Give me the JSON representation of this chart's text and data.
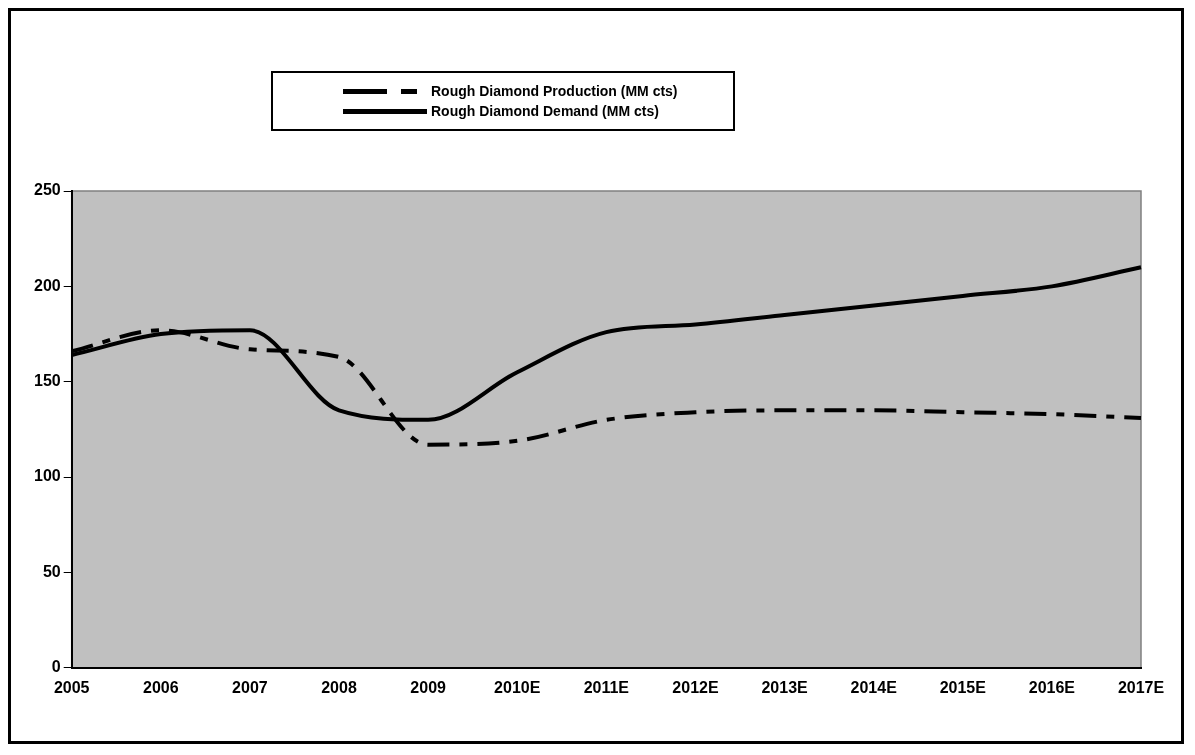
{
  "chart_data": {
    "type": "line",
    "categories": [
      "2005",
      "2006",
      "2007",
      "2008",
      "2009",
      "2010E",
      "2011E",
      "2012E",
      "2013E",
      "2014E",
      "2015E",
      "2016E",
      "2017E"
    ],
    "series": [
      {
        "name": "Rough Diamond Production (MM cts)",
        "color": "#000000",
        "line_style": "dashed",
        "values": [
          166,
          177,
          167,
          163,
          117,
          119,
          130,
          134,
          135,
          135,
          134,
          133,
          131
        ]
      },
      {
        "name": "Rough Diamond Demand (MM cts)",
        "color": "#000000",
        "line_style": "solid",
        "values": [
          164,
          175,
          177,
          135,
          130,
          155,
          176,
          180,
          185,
          190,
          195,
          200,
          210
        ]
      }
    ],
    "ylim": [
      0,
      250
    ],
    "yticks": [
      0,
      50,
      100,
      150,
      200,
      250
    ],
    "grid": false,
    "legend": "top",
    "marker": "none"
  }
}
